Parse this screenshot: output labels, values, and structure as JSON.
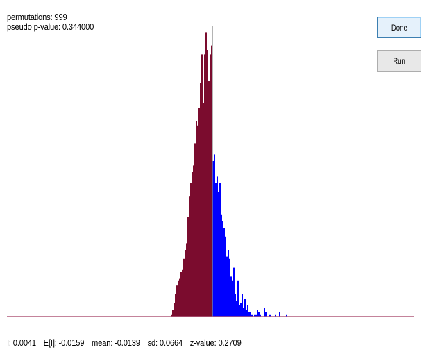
{
  "stats": {
    "permutations": "permutations: 999",
    "pseudo_p_value": "pseudo p-value: 0.344000"
  },
  "buttons": {
    "done_label": "Done",
    "run_label": "Run"
  },
  "footer": {
    "i_value": "I: 0.0041",
    "expected_i": "E[I]: -0.0159",
    "mean": "mean: -0.0139",
    "sd": "sd: 0.0664",
    "z_value": "z-value: 0.2709"
  },
  "colors": {
    "below_observed": "#7b0c2e",
    "above_observed": "#0000ff",
    "observed_line": "#8c8c8c",
    "baseline": "#b05a7a"
  },
  "chart_data": {
    "type": "bar",
    "observed_I": 0.0041,
    "bins_left_of_observed": [
      1,
      3,
      6,
      10,
      14,
      16,
      17,
      20,
      21,
      26,
      30,
      33,
      45,
      54,
      60,
      65,
      68,
      78,
      88,
      86,
      94,
      105,
      118,
      96,
      118,
      128,
      120,
      106,
      118,
      122
    ],
    "bins_right_of_observed": [
      70,
      73,
      60,
      63,
      56,
      60,
      46,
      43,
      40,
      36,
      27,
      30,
      26,
      18,
      16,
      22,
      10,
      7,
      16,
      5,
      6,
      10,
      4,
      8,
      3,
      5,
      2,
      2,
      1,
      0,
      1,
      1,
      3,
      2,
      1,
      0,
      0,
      4,
      2,
      0,
      0,
      1
    ],
    "gap_bins": [
      0,
      0,
      0,
      1,
      0,
      0,
      2,
      0,
      0,
      0,
      0,
      1
    ]
  }
}
